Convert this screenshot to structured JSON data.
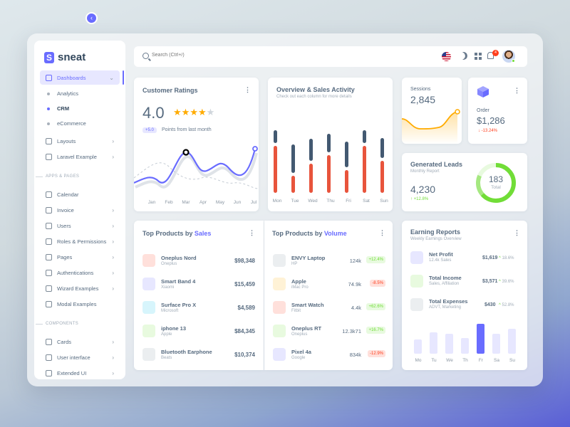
{
  "brand": {
    "name": "sneat",
    "mark": "S"
  },
  "sidebar": {
    "dashboards": "Dashboards",
    "sub": [
      "Analytics",
      "CRM",
      "eCommerce"
    ],
    "layouts": "Layouts",
    "laravel": "Laravel Example",
    "section_apps": "APPS & PAGES",
    "apps": [
      "Calendar",
      "Invoice",
      "Users",
      "Roles & Permissions",
      "Pages",
      "Authentications",
      "Wizard Examples",
      "Modal Examples"
    ],
    "section_components": "COMPONENTS",
    "components": [
      "Cards",
      "User interface",
      "Extended UI"
    ]
  },
  "topbar": {
    "search_placeholder": "Search (Ctrl+/)",
    "notification_count": "4"
  },
  "customer_ratings": {
    "title": "Customer Ratings",
    "value": "4.0",
    "stars_filled": 4,
    "stars_total": 5,
    "delta": "+5.0",
    "delta_label": "Points from last month",
    "months": [
      "Jan",
      "Feb",
      "Mar",
      "Apr",
      "May",
      "Jun",
      "Jul"
    ]
  },
  "overview": {
    "title": "Overview & Sales Activity",
    "subtitle": "Check out each column for more details",
    "days": [
      "Mon",
      "Tue",
      "Wed",
      "Thu",
      "Fri",
      "Sat",
      "Sun"
    ]
  },
  "sessions": {
    "title": "Sessions",
    "value": "2,845"
  },
  "order": {
    "title": "Order",
    "value": "$1,286",
    "change": "-13.24%"
  },
  "generated_leads": {
    "title": "Generated Leads",
    "subtitle": "Monthly Report",
    "value": "4,230",
    "change": "+12.8%",
    "donut_value": "183",
    "donut_label": "Total"
  },
  "top_sales": {
    "title_prefix": "Top Products by ",
    "title_accent": "Sales",
    "items": [
      {
        "name": "Oneplus Nord",
        "brand": "Oneplus",
        "value": "$98,348"
      },
      {
        "name": "Smart Band 4",
        "brand": "Xiaomi",
        "value": "$15,459"
      },
      {
        "name": "Surface Pro X",
        "brand": "Microsoft",
        "value": "$4,589"
      },
      {
        "name": "iphone 13",
        "brand": "Apple",
        "value": "$84,345"
      },
      {
        "name": "Bluetooth Earphone",
        "brand": "Beats",
        "value": "$10,374"
      }
    ]
  },
  "top_volume": {
    "title_prefix": "Top Products by ",
    "title_accent": "Volume",
    "items": [
      {
        "name": "ENVY Laptop",
        "brand": "HP",
        "value": "124k",
        "change": "+12.4%"
      },
      {
        "name": "Apple",
        "brand": "iMac Pro",
        "value": "74.9k",
        "change": "-8.5%"
      },
      {
        "name": "Smart Watch",
        "brand": "Fitbit",
        "value": "4.4k",
        "change": "+62.6%"
      },
      {
        "name": "Oneplus RT",
        "brand": "Oneplus",
        "value": "12.3k71",
        "change": "+16.7%"
      },
      {
        "name": "Pixel 4a",
        "brand": "Google",
        "value": "834k",
        "change": "-12.9%"
      }
    ]
  },
  "earning_reports": {
    "title": "Earning Reports",
    "subtitle": "Weekly Earnings Overview",
    "items": [
      {
        "title": "Net Profit",
        "sub": "12.4k Sales",
        "value": "$1,619",
        "pct": "18.6%"
      },
      {
        "title": "Total Income",
        "sub": "Sales, Affiliation",
        "value": "$3,571",
        "pct": "39.6%"
      },
      {
        "title": "Total Expenses",
        "sub": "ADVT, Marketing",
        "value": "$430",
        "pct": "52.8%"
      }
    ],
    "days": [
      "Mo",
      "Tu",
      "We",
      "Th",
      "Fr",
      "Sa",
      "Su"
    ]
  },
  "colors": {
    "primary": "#696cff",
    "success": "#71dd37",
    "danger": "#ff3e1d",
    "warning": "#ffab00",
    "dark": "#435971"
  }
}
